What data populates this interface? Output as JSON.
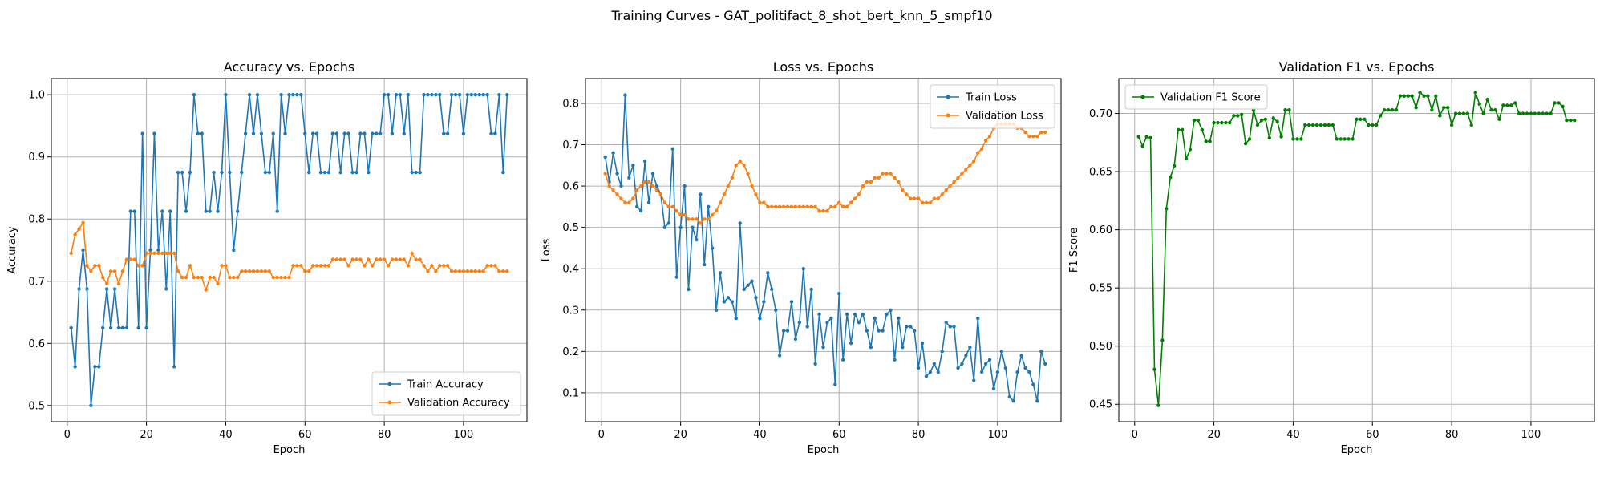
{
  "figure": {
    "suptitle": "Training Curves - GAT_politifact_8_shot_bert_knn_5_smpf10"
  },
  "colors": {
    "blue": "#1f77b4",
    "orange": "#ff7f0e",
    "green": "#008000"
  },
  "chart_data": [
    {
      "type": "line",
      "title": "Accuracy vs. Epochs",
      "xlabel": "Epoch",
      "ylabel": "Accuracy",
      "xlim": [
        -4,
        116
      ],
      "ylim": [
        0.474,
        1.026
      ],
      "xticks": [
        "0",
        "20",
        "40",
        "60",
        "80",
        "100"
      ],
      "yticks": [
        "0.5",
        "0.6",
        "0.7",
        "0.8",
        "0.9",
        "1.0"
      ],
      "grid": true,
      "legend": "lower right",
      "series": [
        {
          "name": "Train Accuracy",
          "color": "#1f77b4",
          "x_start": 1,
          "values": [
            0.625,
            0.5625,
            0.6875,
            0.75,
            0.6875,
            0.5,
            0.5625,
            0.5625,
            0.625,
            0.6875,
            0.625,
            0.6875,
            0.625,
            0.625,
            0.625,
            0.8125,
            0.8125,
            0.625,
            0.9375,
            0.625,
            0.75,
            0.9375,
            0.75,
            0.8125,
            0.6875,
            0.8125,
            0.5625,
            0.875,
            0.875,
            0.8125,
            0.875,
            1.0,
            0.9375,
            0.9375,
            0.8125,
            0.8125,
            0.875,
            0.8125,
            0.875,
            1.0,
            0.875,
            0.75,
            0.8125,
            0.875,
            0.9375,
            1.0,
            0.9375,
            1.0,
            0.9375,
            0.875,
            0.875,
            0.9375,
            0.8125,
            1.0,
            0.9375,
            1.0,
            1.0,
            1.0,
            1.0,
            0.9375,
            0.875,
            0.9375,
            0.9375,
            0.875,
            0.875,
            0.875,
            0.9375,
            0.9375,
            0.875,
            0.9375,
            0.9375,
            0.875,
            0.875,
            0.9375,
            0.9375,
            0.875,
            0.9375,
            0.9375,
            0.9375,
            1.0,
            1.0,
            0.9375,
            1.0,
            1.0,
            0.9375,
            1.0,
            0.875,
            0.875,
            0.875,
            1.0,
            1.0,
            1.0,
            1.0,
            1.0,
            0.9375,
            0.9375,
            1.0,
            1.0,
            1.0,
            0.9375,
            1.0,
            1.0,
            1.0,
            1.0,
            1.0,
            1.0,
            0.9375,
            0.9375,
            1.0,
            0.875,
            1.0
          ]
        },
        {
          "name": "Validation Accuracy",
          "color": "#ff7f0e",
          "x_start": 1,
          "values": [
            0.745,
            0.775,
            0.784,
            0.794,
            0.725,
            0.716,
            0.725,
            0.725,
            0.706,
            0.696,
            0.716,
            0.716,
            0.696,
            0.716,
            0.735,
            0.735,
            0.735,
            0.725,
            0.725,
            0.745,
            0.745,
            0.745,
            0.745,
            0.745,
            0.745,
            0.745,
            0.745,
            0.716,
            0.706,
            0.706,
            0.725,
            0.706,
            0.706,
            0.706,
            0.686,
            0.706,
            0.706,
            0.696,
            0.725,
            0.725,
            0.706,
            0.706,
            0.706,
            0.716,
            0.716,
            0.716,
            0.716,
            0.716,
            0.716,
            0.716,
            0.716,
            0.706,
            0.706,
            0.706,
            0.706,
            0.706,
            0.725,
            0.725,
            0.725,
            0.716,
            0.716,
            0.725,
            0.725,
            0.725,
            0.725,
            0.725,
            0.735,
            0.735,
            0.735,
            0.735,
            0.725,
            0.735,
            0.735,
            0.735,
            0.725,
            0.735,
            0.725,
            0.735,
            0.735,
            0.735,
            0.725,
            0.735,
            0.735,
            0.735,
            0.735,
            0.725,
            0.745,
            0.735,
            0.735,
            0.725,
            0.716,
            0.725,
            0.716,
            0.725,
            0.725,
            0.725,
            0.716,
            0.716,
            0.716,
            0.716,
            0.716,
            0.716,
            0.716,
            0.716,
            0.716,
            0.725,
            0.725,
            0.725,
            0.716,
            0.716,
            0.716
          ]
        }
      ]
    },
    {
      "type": "line",
      "title": "Loss vs. Epochs",
      "xlabel": "Epoch",
      "ylabel": "Loss",
      "xlim": [
        -4,
        116
      ],
      "ylim": [
        0.03,
        0.86
      ],
      "xticks": [
        "0",
        "20",
        "40",
        "60",
        "80",
        "100"
      ],
      "yticks": [
        "0.1",
        "0.2",
        "0.3",
        "0.4",
        "0.5",
        "0.6",
        "0.7",
        "0.8"
      ],
      "grid": true,
      "legend": "upper right",
      "series": [
        {
          "name": "Train Loss",
          "color": "#1f77b4",
          "x_start": 1,
          "values": [
            0.67,
            0.61,
            0.68,
            0.63,
            0.6,
            0.82,
            0.62,
            0.65,
            0.55,
            0.54,
            0.66,
            0.56,
            0.63,
            0.6,
            0.58,
            0.5,
            0.51,
            0.69,
            0.38,
            0.5,
            0.6,
            0.35,
            0.5,
            0.47,
            0.58,
            0.41,
            0.55,
            0.45,
            0.3,
            0.39,
            0.32,
            0.33,
            0.32,
            0.28,
            0.51,
            0.35,
            0.36,
            0.37,
            0.33,
            0.28,
            0.32,
            0.39,
            0.35,
            0.3,
            0.19,
            0.25,
            0.25,
            0.32,
            0.23,
            0.27,
            0.4,
            0.26,
            0.35,
            0.17,
            0.29,
            0.21,
            0.27,
            0.28,
            0.12,
            0.34,
            0.18,
            0.29,
            0.22,
            0.29,
            0.27,
            0.29,
            0.25,
            0.21,
            0.28,
            0.25,
            0.25,
            0.29,
            0.3,
            0.18,
            0.28,
            0.21,
            0.26,
            0.26,
            0.25,
            0.16,
            0.22,
            0.14,
            0.15,
            0.17,
            0.15,
            0.2,
            0.27,
            0.26,
            0.26,
            0.16,
            0.17,
            0.19,
            0.21,
            0.13,
            0.28,
            0.15,
            0.17,
            0.18,
            0.11,
            0.15,
            0.2,
            0.16,
            0.09,
            0.08,
            0.15,
            0.19,
            0.16,
            0.15,
            0.12,
            0.08,
            0.2,
            0.17
          ]
        },
        {
          "name": "Validation Loss",
          "color": "#ff7f0e",
          "x_start": 1,
          "values": [
            0.63,
            0.6,
            0.59,
            0.58,
            0.57,
            0.56,
            0.56,
            0.57,
            0.59,
            0.6,
            0.61,
            0.61,
            0.6,
            0.59,
            0.58,
            0.56,
            0.55,
            0.55,
            0.54,
            0.53,
            0.53,
            0.52,
            0.52,
            0.52,
            0.51,
            0.52,
            0.52,
            0.53,
            0.54,
            0.56,
            0.58,
            0.6,
            0.62,
            0.65,
            0.66,
            0.65,
            0.63,
            0.6,
            0.58,
            0.56,
            0.56,
            0.55,
            0.55,
            0.55,
            0.55,
            0.55,
            0.55,
            0.55,
            0.55,
            0.55,
            0.55,
            0.55,
            0.55,
            0.55,
            0.54,
            0.54,
            0.54,
            0.55,
            0.55,
            0.56,
            0.55,
            0.55,
            0.56,
            0.57,
            0.58,
            0.6,
            0.61,
            0.61,
            0.62,
            0.62,
            0.63,
            0.63,
            0.63,
            0.62,
            0.61,
            0.59,
            0.58,
            0.57,
            0.57,
            0.57,
            0.56,
            0.56,
            0.56,
            0.57,
            0.57,
            0.58,
            0.59,
            0.6,
            0.61,
            0.62,
            0.63,
            0.64,
            0.65,
            0.66,
            0.68,
            0.69,
            0.71,
            0.72,
            0.74,
            0.75,
            0.75,
            0.75,
            0.75,
            0.75,
            0.74,
            0.74,
            0.73,
            0.72,
            0.72,
            0.72,
            0.73,
            0.73
          ]
        }
      ]
    },
    {
      "type": "line",
      "title": "Validation F1 vs. Epochs",
      "xlabel": "Epoch",
      "ylabel": "F1 Score",
      "xlim": [
        -4,
        116
      ],
      "ylim": [
        0.435,
        0.73
      ],
      "xticks": [
        "0",
        "20",
        "40",
        "60",
        "80",
        "100"
      ],
      "yticks": [
        "0.45",
        "0.50",
        "0.55",
        "0.60",
        "0.65",
        "0.70"
      ],
      "grid": true,
      "legend": "upper left",
      "series": [
        {
          "name": "Validation F1 Score",
          "color": "#008000",
          "x_start": 1,
          "values": [
            0.68,
            0.672,
            0.68,
            0.679,
            0.48,
            0.449,
            0.505,
            0.618,
            0.645,
            0.655,
            0.686,
            0.686,
            0.661,
            0.669,
            0.694,
            0.694,
            0.686,
            0.676,
            0.676,
            0.692,
            0.692,
            0.692,
            0.692,
            0.692,
            0.698,
            0.698,
            0.699,
            0.674,
            0.678,
            0.703,
            0.69,
            0.694,
            0.695,
            0.679,
            0.696,
            0.693,
            0.68,
            0.703,
            0.703,
            0.678,
            0.678,
            0.678,
            0.69,
            0.69,
            0.69,
            0.69,
            0.69,
            0.69,
            0.69,
            0.69,
            0.678,
            0.678,
            0.678,
            0.678,
            0.678,
            0.695,
            0.695,
            0.695,
            0.69,
            0.69,
            0.69,
            0.698,
            0.703,
            0.703,
            0.703,
            0.703,
            0.715,
            0.715,
            0.715,
            0.715,
            0.705,
            0.718,
            0.715,
            0.715,
            0.703,
            0.715,
            0.698,
            0.705,
            0.705,
            0.69,
            0.7,
            0.7,
            0.7,
            0.7,
            0.69,
            0.718,
            0.708,
            0.7,
            0.712,
            0.703,
            0.703,
            0.695,
            0.707,
            0.707,
            0.707,
            0.709,
            0.7,
            0.7,
            0.7,
            0.7,
            0.7,
            0.7,
            0.7,
            0.7,
            0.7,
            0.709,
            0.709,
            0.706,
            0.694,
            0.694,
            0.694
          ]
        }
      ]
    }
  ]
}
